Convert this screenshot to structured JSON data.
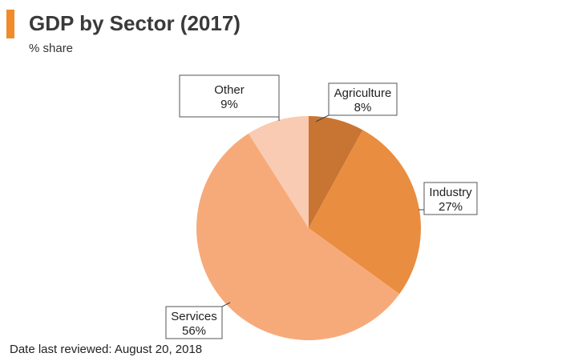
{
  "header": {
    "title": "GDP by Sector (2017)",
    "subtitle": "% share"
  },
  "footer": {
    "note": "Date last reviewed: August 20, 2018"
  },
  "chart_data": {
    "type": "pie",
    "slices": [
      {
        "name": "Agriculture",
        "value": 8,
        "label": "8%",
        "color": "#c87533"
      },
      {
        "name": "Industry",
        "value": 27,
        "label": "27%",
        "color": "#e98d41"
      },
      {
        "name": "Services",
        "value": 56,
        "label": "56%",
        "color": "#f7aa79"
      },
      {
        "name": "Other",
        "value": 9,
        "label": "9%",
        "color": "#f9cbb2"
      }
    ],
    "start_angle_deg": 0,
    "direction": "clockwise",
    "accent_color": "#f08a2a"
  }
}
